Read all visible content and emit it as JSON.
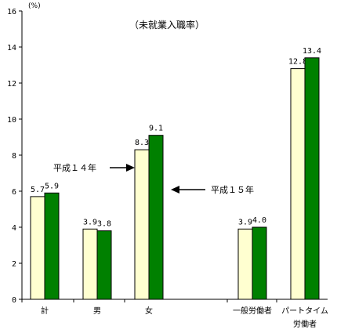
{
  "chart_data": {
    "type": "bar",
    "title": "（未就業入職率）",
    "unit_label": "(%)",
    "ylim": [
      0,
      16
    ],
    "yticks": [
      0,
      2,
      4,
      6,
      8,
      10,
      12,
      14,
      16
    ],
    "categories": [
      {
        "label": "計"
      },
      {
        "label": "男"
      },
      {
        "label": "女"
      },
      {
        "label": "一般労働者"
      },
      {
        "label": "パートタイム",
        "label2": "労働者"
      }
    ],
    "series": [
      {
        "name": "平成１４年",
        "color": "#ffffd0",
        "values": [
          5.7,
          3.9,
          8.3,
          3.9,
          12.8
        ],
        "labels": [
          "5.7",
          "3.9",
          "8.3",
          "3.9",
          "12.8"
        ]
      },
      {
        "name": "平成１５年",
        "color": "#008000",
        "values": [
          5.9,
          3.8,
          9.1,
          4.0,
          13.4
        ],
        "labels": [
          "5.9",
          "3.8",
          "9.1",
          "4.0",
          "13.4"
        ]
      }
    ]
  }
}
